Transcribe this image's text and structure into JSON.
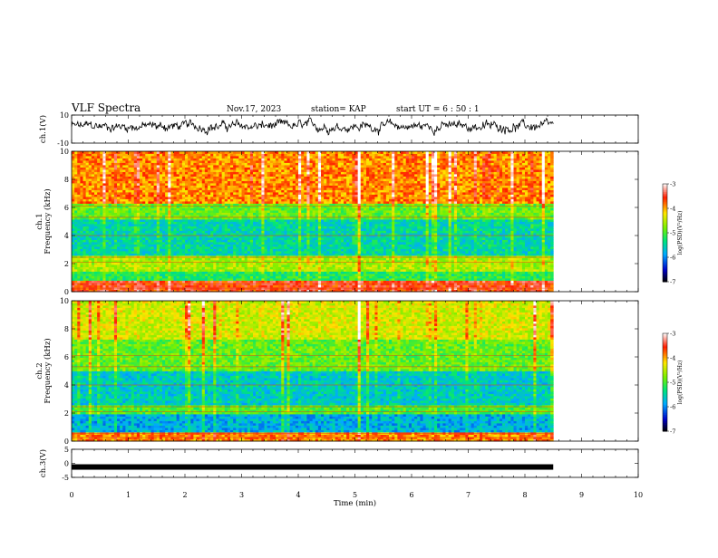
{
  "header": {
    "title": "VLF Spectra",
    "date": "Nov.17, 2023",
    "station": "station= KAP",
    "start": "start  UT =   6 : 50 : 1"
  },
  "chart_data": [
    {
      "id": "ch1-waveform",
      "type": "line",
      "ylabel": "ch.1(V)",
      "ylim": [
        -10,
        10
      ],
      "y_ticks": [
        "10",
        "-10"
      ],
      "xlim": [
        0,
        10
      ],
      "data_end_min": 8.5,
      "color": "#000000",
      "note": "noisy time series, mean ~2 V, range approx -6 to 10 V"
    },
    {
      "id": "ch1-spectrogram",
      "type": "heatmap",
      "ylabel": "ch.1\nFrequency (kHz)",
      "ylim": [
        0,
        10
      ],
      "y_ticks": [
        "0",
        "2",
        "4",
        "6",
        "8",
        "10"
      ],
      "xlim": [
        0,
        10
      ],
      "data_end_min": 8.5,
      "colorbar": {
        "label": "log(PSD)(V²/Hz)",
        "range": [
          -7,
          -3
        ],
        "ticks": [
          "-3",
          "-4",
          "-5",
          "-6",
          "-7"
        ]
      }
    },
    {
      "id": "ch2-spectrogram",
      "type": "heatmap",
      "ylabel": "ch.2\nFrequency (kHz)",
      "ylim": [
        0,
        10
      ],
      "y_ticks": [
        "0",
        "2",
        "4",
        "6",
        "8",
        "10"
      ],
      "xlim": [
        0,
        10
      ],
      "data_end_min": 8.5,
      "colorbar": {
        "label": "log(PSD)(V²/Hz)",
        "range": [
          -7,
          -3
        ],
        "ticks": [
          "-3",
          "-4",
          "-5",
          "-6",
          "-7"
        ]
      }
    },
    {
      "id": "ch3-waveform",
      "type": "line",
      "ylabel": "ch.3(V)",
      "ylim": [
        -5,
        5
      ],
      "y_ticks": [
        "5",
        "0",
        "-5"
      ],
      "xlim": [
        0,
        10
      ],
      "data_end_min": 8.5,
      "value": -1.3,
      "color": "#000000"
    }
  ],
  "x_axis": {
    "label": "Time  (min)",
    "ticks": [
      "0",
      "1",
      "2",
      "3",
      "4",
      "5",
      "6",
      "7",
      "8",
      "9",
      "10"
    ]
  }
}
